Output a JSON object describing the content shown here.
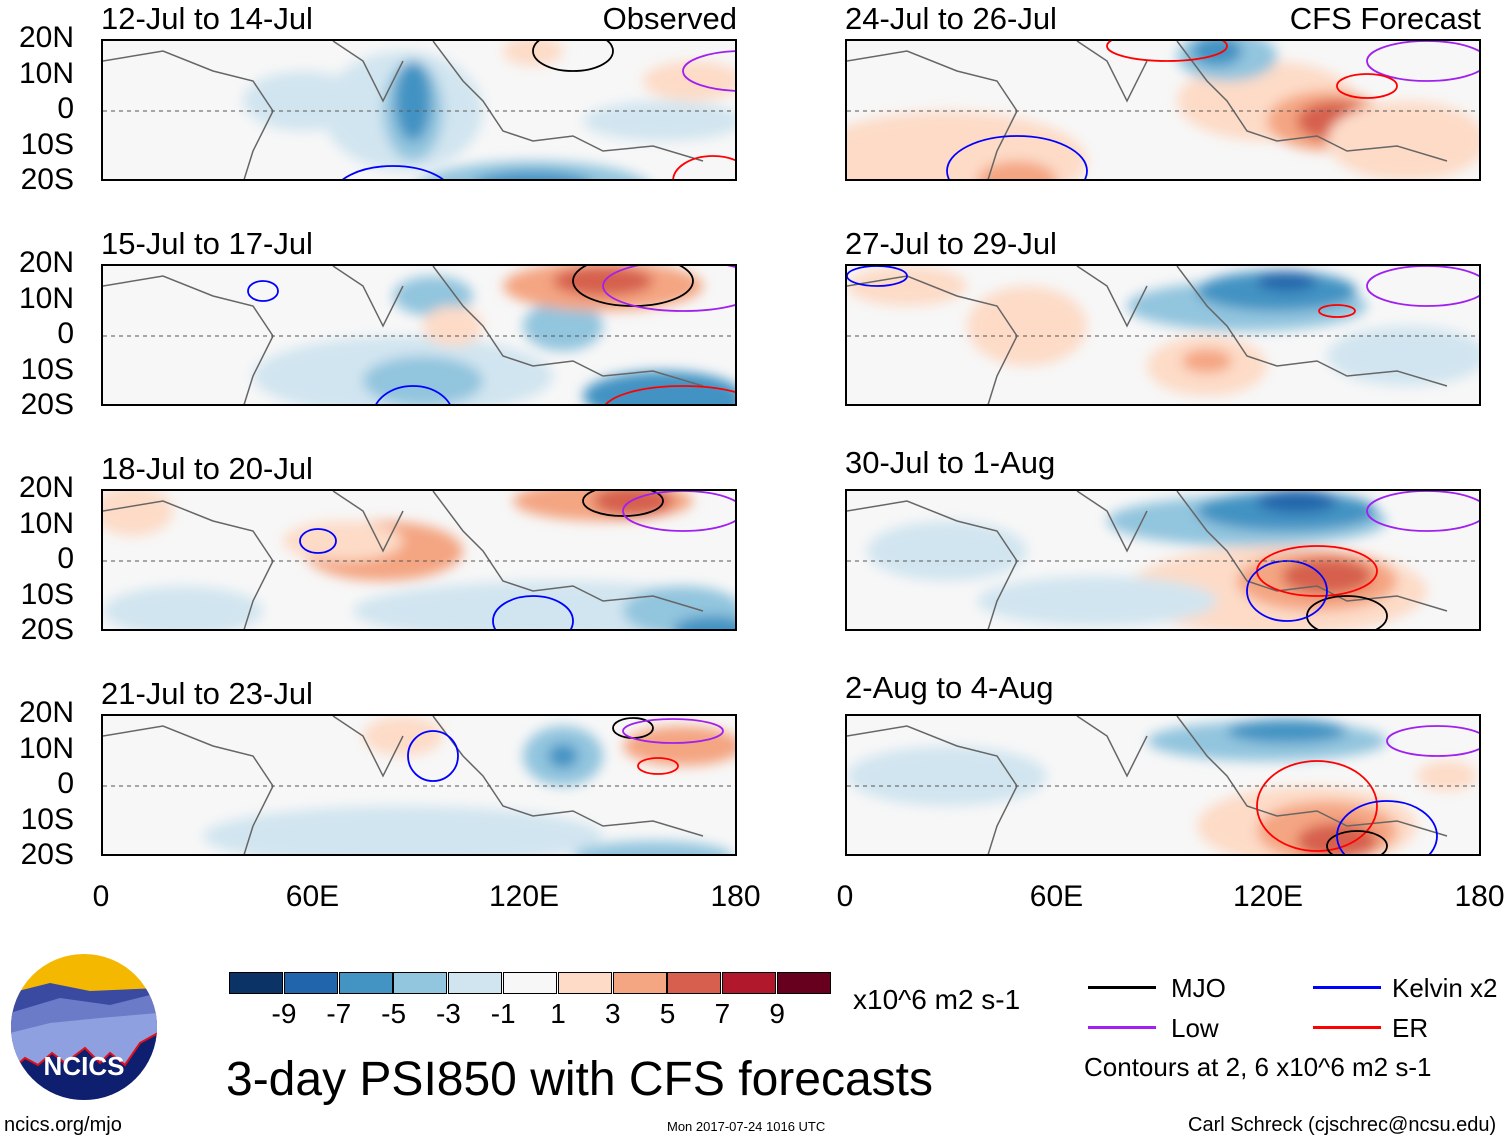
{
  "panels": [
    {
      "id": "left-0",
      "title": "12-Jul to 14-Jul",
      "tag": "Observed"
    },
    {
      "id": "left-1",
      "title": "15-Jul to 17-Jul"
    },
    {
      "id": "left-2",
      "title": "18-Jul to 20-Jul"
    },
    {
      "id": "left-3",
      "title": "21-Jul to 23-Jul"
    },
    {
      "id": "right-0",
      "title": "24-Jul to 26-Jul",
      "tag": "CFS Forecast"
    },
    {
      "id": "right-1",
      "title": "27-Jul to 29-Jul"
    },
    {
      "id": "right-2",
      "title": "30-Jul to 1-Aug"
    },
    {
      "id": "right-3",
      "title": "2-Aug to 4-Aug"
    }
  ],
  "lat_labels": [
    "20N",
    "10N",
    "0",
    "10S",
    "20S"
  ],
  "lon_labels": [
    "0",
    "60E",
    "120E",
    "180"
  ],
  "colorbar": {
    "colors": [
      "#0b3366",
      "#2166ac",
      "#4393c3",
      "#92c5de",
      "#d1e5f0",
      "#f7f7f7",
      "#fddbc7",
      "#f4a582",
      "#d6604d",
      "#b2182b",
      "#67001f"
    ],
    "labels": [
      "-9",
      "-7",
      "-5",
      "-3",
      "-1",
      "1",
      "3",
      "5",
      "7",
      "9"
    ],
    "units": "x10^6 m2 s-1"
  },
  "title": "3-day PSI850 with CFS forecasts",
  "legend": {
    "items": [
      {
        "label": "MJO",
        "color": "#000000"
      },
      {
        "label": "Kelvin x2",
        "color": "#0000ff"
      },
      {
        "label": "Low",
        "color": "#a020f0"
      },
      {
        "label": "ER",
        "color": "#ff0000"
      }
    ],
    "note": "Contours at 2, 6 x10^6 m2 s-1"
  },
  "logo": {
    "text": "NCICS"
  },
  "footer": {
    "url": "ncics.org/mjo",
    "timestamp": "Mon 2017-07-24 1016 UTC",
    "credit": "Carl Schreck (cjschrec@ncsu.edu)"
  }
}
